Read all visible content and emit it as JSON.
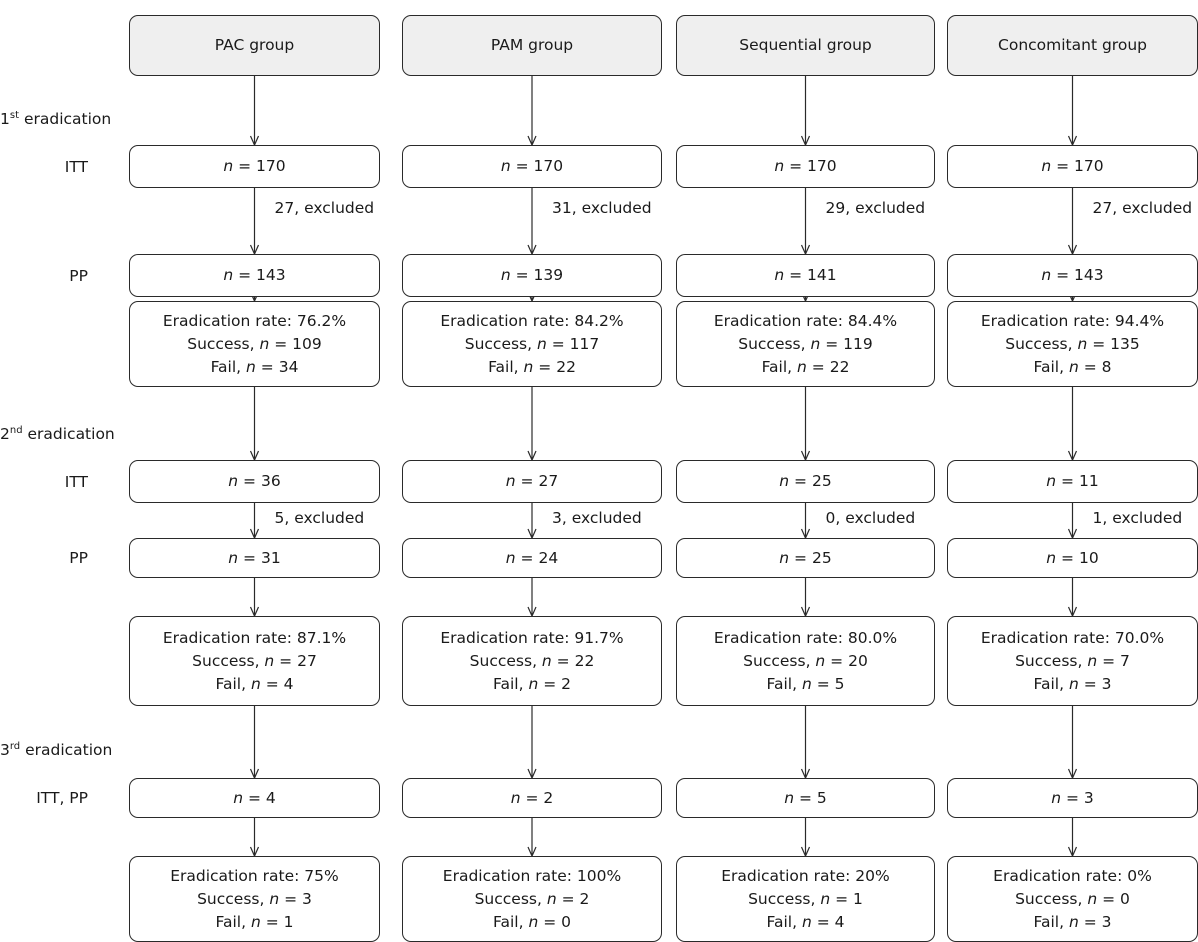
{
  "groups": [
    {
      "name": "PAC group",
      "first": {
        "itt": "170",
        "excluded": "27, excluded",
        "pp": "143",
        "rate": "Eradication rate: 76.2%",
        "success": "109",
        "fail": "34"
      },
      "second": {
        "itt": "36",
        "excluded": "5, excluded",
        "pp": "31",
        "rate": "Eradication rate: 87.1%",
        "success": "27",
        "fail": "4"
      },
      "third": {
        "itt_pp": "4",
        "rate": "Eradication rate: 75%",
        "success": "3",
        "fail": "1"
      }
    },
    {
      "name": "PAM group",
      "first": {
        "itt": "170",
        "excluded": "31, excluded",
        "pp": "139",
        "rate": "Eradication rate: 84.2%",
        "success": "117",
        "fail": "22"
      },
      "second": {
        "itt": "27",
        "excluded": "3, excluded",
        "pp": "24",
        "rate": "Eradication rate: 91.7%",
        "success": "22",
        "fail": "2"
      },
      "third": {
        "itt_pp": "2",
        "rate": "Eradication rate: 100%",
        "success": "2",
        "fail": "0"
      }
    },
    {
      "name": "Sequential group",
      "first": {
        "itt": "170",
        "excluded": "29, excluded",
        "pp": "141",
        "rate": "Eradication rate: 84.4%",
        "success": "119",
        "fail": "22"
      },
      "second": {
        "itt": "25",
        "excluded": "0, excluded",
        "pp": "25",
        "rate": "Eradication rate: 80.0%",
        "success": "20",
        "fail": "5"
      },
      "third": {
        "itt_pp": "5",
        "rate": "Eradication rate: 20%",
        "success": "1",
        "fail": "4"
      }
    },
    {
      "name": "Concomitant group",
      "first": {
        "itt": "170",
        "excluded": "27, excluded",
        "pp": "143",
        "rate": "Eradication rate: 94.4%",
        "success": "135",
        "fail": "8"
      },
      "second": {
        "itt": "11",
        "excluded": "1, excluded",
        "pp": "10",
        "rate": "Eradication rate: 70.0%",
        "success": "7",
        "fail": "3"
      },
      "third": {
        "itt_pp": "3",
        "rate": "Eradication rate: 0%",
        "success": "0",
        "fail": "3"
      }
    }
  ],
  "stage_labels": {
    "first": {
      "number": "1",
      "suffix": "st",
      "text": " eradication"
    },
    "second": {
      "number": "2",
      "suffix": "nd",
      "text": " eradication"
    },
    "third": {
      "number": "3",
      "suffix": "rd",
      "text": " eradication"
    }
  },
  "row_labels": {
    "itt": "ITT",
    "pp": "PP",
    "itt_pp": "ITT, PP"
  },
  "text": {
    "n_symbol": "n",
    "equals": " = ",
    "success_prefix": "Success, ",
    "fail_prefix": "Fail, "
  },
  "colors": {
    "header_fill": "#efefef",
    "border": "#2a2a2a"
  }
}
